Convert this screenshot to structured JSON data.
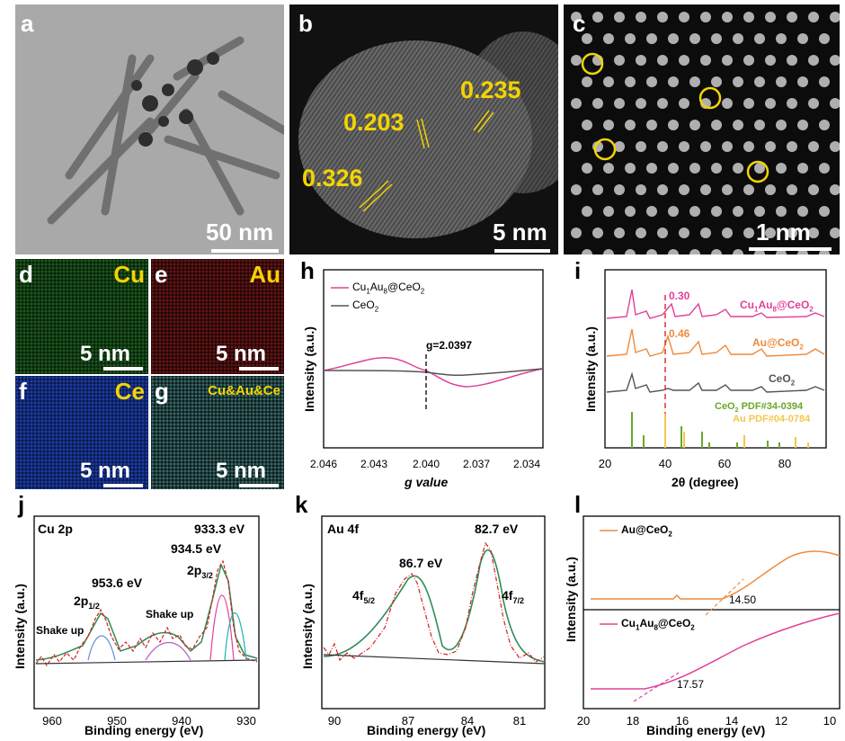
{
  "panels": {
    "a": {
      "label": "a",
      "scale": "50 nm"
    },
    "b": {
      "label": "b",
      "scale": "5 nm",
      "spacings": [
        "0.203",
        "0.235",
        "0.326"
      ]
    },
    "c": {
      "label": "c",
      "scale": "1 nm"
    },
    "d": {
      "label": "d",
      "element": "Cu",
      "scale": "5 nm"
    },
    "e": {
      "label": "e",
      "element": "Au",
      "scale": "5 nm"
    },
    "f": {
      "label": "f",
      "element": "Ce",
      "scale": "5 nm"
    },
    "g": {
      "label": "g",
      "element": "Cu&Au&Ce",
      "scale": "5 nm"
    },
    "h": {
      "label": "h",
      "ylabel": "Intensity (a.u.)",
      "xlabel": "g value",
      "annotation": "g=2.0397",
      "legend": [
        "Cu1Au8@CeO2",
        "CeO2"
      ]
    },
    "i": {
      "label": "i",
      "ylabel": "Intensity (a.u.)",
      "xlabel": "2θ (degree)",
      "shift1": "0.30",
      "shift2": "0.46",
      "pdf1": "CeO2 PDF#34-0394",
      "pdf2": "Au PDF#04-0784"
    },
    "j": {
      "label": "j",
      "title": "Cu 2p",
      "ylabel": "Intensity (a.u.)",
      "xlabel": "Binding energy (eV)",
      "peaks": [
        "933.3 eV",
        "934.5 eV",
        "953.6 eV"
      ],
      "labels": [
        "2p3/2",
        "2p1/2",
        "Shake up",
        "Shake up"
      ]
    },
    "k": {
      "label": "k",
      "title": "Au 4f",
      "ylabel": "Intensity (a.u.)",
      "xlabel": "Binding energy (eV)",
      "peaks": [
        "82.7 eV",
        "86.7 eV"
      ],
      "labels": [
        "4f5/2",
        "4f7/2"
      ]
    },
    "l": {
      "label": "l",
      "ylabel": "Intensity (a.u.)",
      "xlabel": "Binding energy (eV)",
      "values": [
        "14.50",
        "17.57"
      ]
    }
  },
  "chart_data": [
    {
      "type": "line",
      "panel": "h",
      "xlabel": "g value",
      "ylabel": "Intensity (a.u.)",
      "x_ticks": [
        2.046,
        2.043,
        2.04,
        2.037,
        2.034
      ],
      "xlim": [
        2.046,
        2.032
      ],
      "series": [
        {
          "name": "Cu1Au8@CeO2",
          "color": "#e0409a"
        },
        {
          "name": "CeO2",
          "color": "#555555"
        }
      ],
      "annotation": {
        "text": "g=2.0397",
        "x": 2.0397
      }
    },
    {
      "type": "line",
      "panel": "i",
      "xlabel": "2θ (degree)",
      "ylabel": "Intensity (a.u.)",
      "x_ticks": [
        20,
        40,
        60,
        80
      ],
      "xlim": [
        20,
        85
      ],
      "series": [
        {
          "name": "Cu1Au8@CeO2",
          "color": "#e0409a"
        },
        {
          "name": "Au@CeO2",
          "color": "#ee8a3c"
        },
        {
          "name": "CeO2",
          "color": "#555555"
        }
      ],
      "references": [
        {
          "name": "CeO2 PDF#34-0394",
          "color": "#6aa829",
          "peaks": [
            28.6,
            33.1,
            47.5,
            56.3,
            59.1,
            69.4,
            76.7,
            79.1
          ]
        },
        {
          "name": "Au PDF#04-0784",
          "color": "#f2c84b",
          "peaks": [
            38.2,
            44.4,
            64.6,
            77.5,
            81.7
          ]
        }
      ],
      "annotations": [
        "0.30",
        "0.46"
      ]
    },
    {
      "type": "line",
      "panel": "j",
      "xlabel": "Binding energy (eV)",
      "ylabel": "Intensity (a.u.)",
      "x_ticks": [
        960,
        950,
        940,
        930
      ],
      "xlim": [
        965,
        930
      ],
      "peaks": [
        933.3,
        934.5,
        953.6
      ]
    },
    {
      "type": "line",
      "panel": "k",
      "xlabel": "Binding energy (eV)",
      "ylabel": "Intensity (a.u.)",
      "x_ticks": [
        90,
        87,
        84,
        81
      ],
      "xlim": [
        91,
        79
      ],
      "peaks": [
        82.7,
        86.7
      ]
    },
    {
      "type": "line",
      "panel": "l",
      "xlabel": "Binding energy (eV)",
      "ylabel": "Intensity (a.u.)",
      "x_ticks": [
        20,
        18,
        16,
        14,
        12,
        10
      ],
      "xlim": [
        20,
        9.5
      ],
      "series": [
        {
          "name": "Au@CeO2",
          "color": "#ee8a3c",
          "onset": 14.5
        },
        {
          "name": "Cu1Au8@CeO2",
          "color": "#e0409a",
          "onset": 17.57
        }
      ]
    }
  ]
}
